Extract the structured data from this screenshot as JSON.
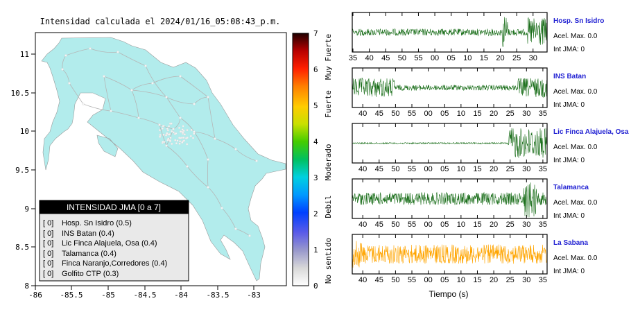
{
  "map": {
    "title": "Intensidad calculada el 2024/01/16_05:08:43_p.m.",
    "x_ticks": [
      "-86",
      "-85.5",
      "-85",
      "-84.5",
      "-84",
      "-83.5",
      "-83"
    ],
    "y_ticks": [
      "11",
      "10.5",
      "10",
      "9.5",
      "9",
      "8.5",
      "8"
    ],
    "land_color": "#b2ecec",
    "legend": {
      "title": "INTENSIDAD JMA [0 a 7]",
      "items": [
        {
          "level": "[ 0]",
          "label": "Hosp. Sn Isidro (0.5)"
        },
        {
          "level": "[ 0]",
          "label": "INS Batan (0.4)"
        },
        {
          "level": "[ 0]",
          "label": "Lic Finca Alajuela, Osa (0.4)"
        },
        {
          "level": "[ 0]",
          "label": "Talamanca (0.4)"
        },
        {
          "level": "[ 0]",
          "label": "Finca Naranjo,Corredores (0.4)"
        },
        {
          "level": "[ 0]",
          "label": "Golfito CTP (0.3)"
        }
      ]
    }
  },
  "colorbar": {
    "ticks": [
      "7",
      "6",
      "5",
      "4",
      "3",
      "2",
      "1",
      "0"
    ],
    "categories": [
      "Muy Fuerte",
      "Fuerte",
      "Moderado",
      "Debil",
      "No sentido"
    ]
  },
  "waveforms": {
    "stations": [
      {
        "name": "Hosp. Sn Isidro",
        "accel": "Acel. Max. 0.0",
        "jma": "Int JMA: 0",
        "color": "#1a6e1a",
        "ticks": [
          "35",
          "40",
          "45",
          "50",
          "55",
          "00",
          "05",
          "10",
          "15",
          "20",
          "25",
          "30"
        ],
        "first_tick_offset": 0.0
      },
      {
        "name": "INS Batan",
        "accel": "Acel. Max. 0.0",
        "jma": "Int JMA: 0",
        "color": "#1a6e1a",
        "ticks": [
          "40",
          "45",
          "50",
          "55",
          "00",
          "05",
          "10",
          "15",
          "20",
          "25",
          "30",
          "35"
        ],
        "first_tick_offset": 3.0
      },
      {
        "name": "Lic Finca Alajuela, Osa",
        "accel": "Acel. Max. 0.0",
        "jma": "Int JMA: 0",
        "color": "#1a6e1a",
        "ticks": [
          "40",
          "45",
          "50",
          "55",
          "00",
          "05",
          "10",
          "15",
          "20",
          "25",
          "30",
          "35"
        ],
        "first_tick_offset": 3.0
      },
      {
        "name": "Talamanca",
        "accel": "Acel. Max. 0.0",
        "jma": "Int JMA: 0",
        "color": "#1a6e1a",
        "ticks": [
          "40",
          "45",
          "50",
          "55",
          "00",
          "05",
          "10",
          "15",
          "20",
          "25",
          "30",
          "35"
        ],
        "first_tick_offset": 3.0
      },
      {
        "name": "La Sabana",
        "accel": "Acel. Max. 0.0",
        "jma": "Int JMA: 0",
        "color": "#ffa500",
        "ticks": [
          "40",
          "45",
          "50",
          "55",
          "00",
          "05",
          "10",
          "15",
          "20",
          "25",
          "30",
          "35"
        ],
        "first_tick_offset": 3.0
      }
    ],
    "xlabel": "Tiempo (s)"
  }
}
